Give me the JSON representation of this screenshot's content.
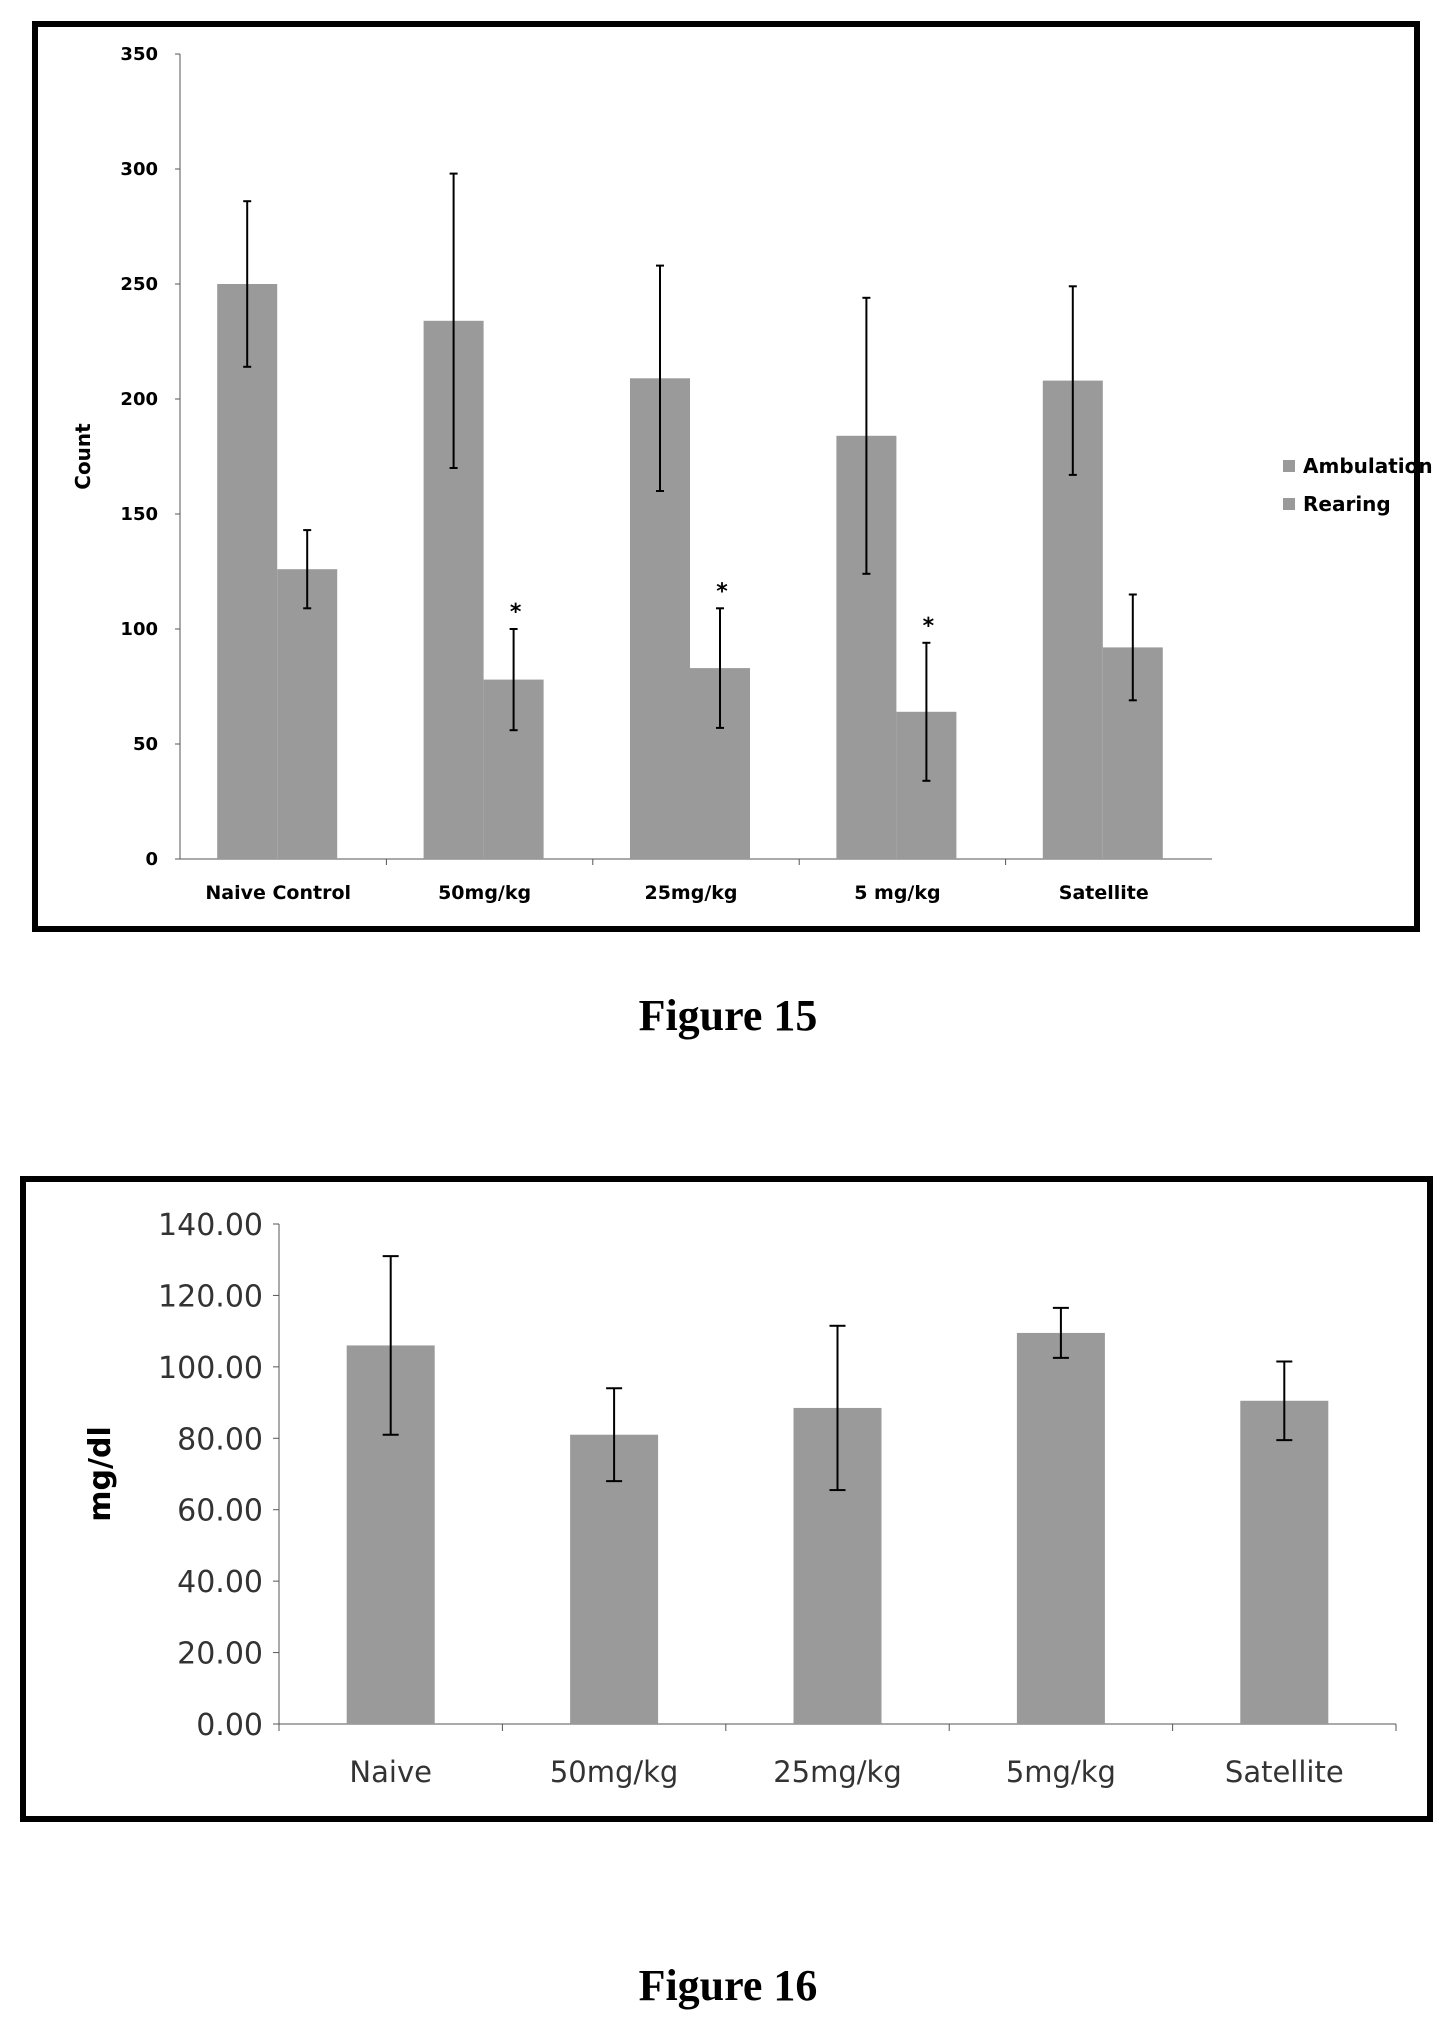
{
  "figures": [
    {
      "caption": "Figure 15"
    },
    {
      "caption": "Figure 16"
    }
  ],
  "colors": {
    "bar_fill": "#9a9a9a",
    "axis": "#555555",
    "text": "#000000"
  },
  "chart_data": [
    {
      "type": "bar",
      "title": "",
      "xlabel": "",
      "ylabel": "Count",
      "ylim": [
        0,
        350
      ],
      "yticks": [
        "0",
        "50",
        "100",
        "150",
        "200",
        "250",
        "300",
        "350"
      ],
      "categories": [
        "Naive Control",
        "50mg/kg",
        "25mg/kg",
        "5 mg/kg",
        "Satellite"
      ],
      "series": [
        {
          "name": "Ambulation",
          "values": [
            250,
            234,
            209,
            184,
            208
          ],
          "errors": [
            36,
            64,
            49,
            60,
            41
          ]
        },
        {
          "name": "Rearing",
          "values": [
            126,
            78,
            83,
            64,
            92
          ],
          "errors": [
            17,
            22,
            26,
            30,
            23
          ]
        }
      ],
      "annotations": [
        {
          "category": "50mg/kg",
          "series": "Rearing",
          "text": "*"
        },
        {
          "category": "25mg/kg",
          "series": "Rearing",
          "text": "*"
        },
        {
          "category": "5 mg/kg",
          "series": "Rearing",
          "text": "*"
        }
      ],
      "legend": "right",
      "grid": false
    },
    {
      "type": "bar",
      "title": "",
      "xlabel": "",
      "ylabel": "mg/dl",
      "ylim": [
        0,
        140
      ],
      "yticks": [
        "0.00",
        "20.00",
        "40.00",
        "60.00",
        "80.00",
        "100.00",
        "120.00",
        "140.00"
      ],
      "categories": [
        "Naive",
        "50mg/kg",
        "25mg/kg",
        "5mg/kg",
        "Satellite"
      ],
      "series": [
        {
          "values": [
            106,
            81,
            88.5,
            109.5,
            90.5
          ],
          "errors": [
            25,
            13,
            23,
            7,
            11
          ]
        }
      ],
      "grid": false
    }
  ]
}
